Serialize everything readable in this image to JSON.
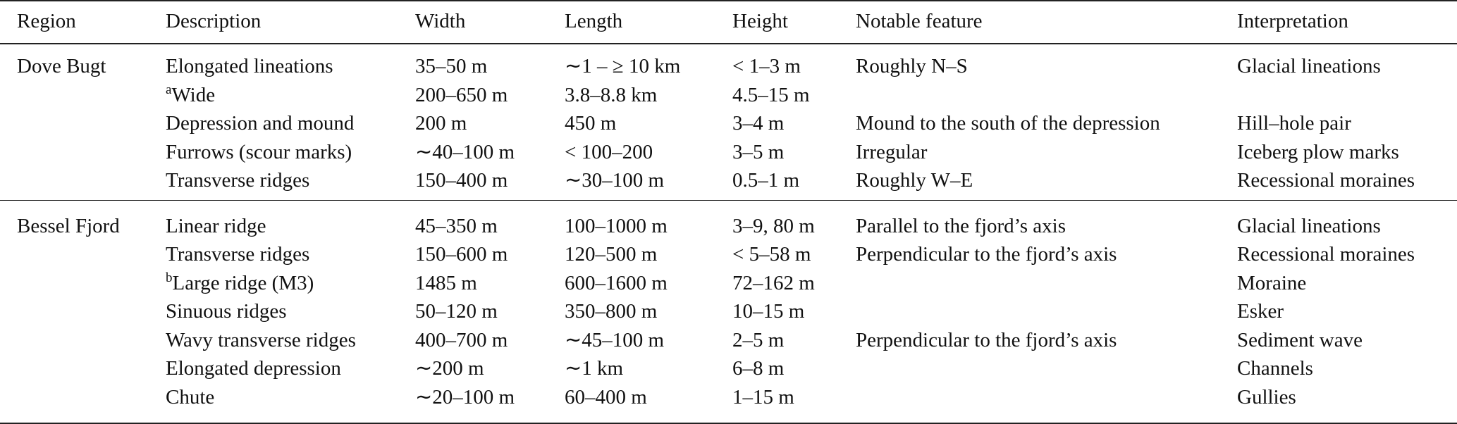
{
  "table": {
    "columns": [
      "Region",
      "Description",
      "Width",
      "Length",
      "Height",
      "Notable feature",
      "Interpretation"
    ],
    "groups": [
      {
        "region": "Dove Bugt",
        "rows": [
          [
            "Elongated lineations",
            "35–50 m",
            "∼1 – ≥ 10 km",
            "< 1–3 m",
            "Roughly N–S",
            "Glacial lineations"
          ],
          [
            {
              "mark": "a",
              "text": "Wide"
            },
            "200–650 m",
            "3.8–8.8 km",
            "4.5–15 m",
            null,
            null
          ],
          [
            "Depression and mound",
            "200 m",
            "450 m",
            "3–4 m",
            "Mound to the south of the depression",
            "Hill–hole pair"
          ],
          [
            "Furrows (scour marks)",
            "∼40–100 m",
            "< 100–200",
            "3–5 m",
            "Irregular",
            "Iceberg plow marks"
          ],
          [
            "Transverse ridges",
            "150–400 m",
            "∼30–100 m",
            "0.5–1 m",
            "Roughly W–E",
            "Recessional moraines"
          ]
        ]
      },
      {
        "region": "Bessel Fjord",
        "rows": [
          [
            "Linear ridge",
            "45–350 m",
            "100–1000 m",
            "3–9, 80 m",
            "Parallel to the fjord’s axis",
            "Glacial lineations"
          ],
          [
            "Transverse ridges",
            "150–600 m",
            "120–500 m",
            "< 5–58 m",
            "Perpendicular to the fjord’s axis",
            "Recessional moraines"
          ],
          [
            {
              "mark": "b",
              "text": "Large ridge (M3)"
            },
            "1485 m",
            "600–1600 m",
            "72–162 m",
            null,
            "Moraine"
          ],
          [
            "Sinuous ridges",
            "50–120 m",
            "350–800 m",
            "10–15 m",
            null,
            "Esker"
          ],
          [
            "Wavy transverse ridges",
            "400–700 m",
            "∼45–100 m",
            "2–5 m",
            "Perpendicular to the fjord’s axis",
            "Sediment wave"
          ],
          [
            "Elongated depression",
            "∼200 m",
            "∼1 km",
            "6–8 m",
            null,
            "Channels"
          ],
          [
            "Chute",
            "∼20–100 m",
            "60–400 m",
            "1–15 m",
            null,
            "Gullies"
          ]
        ]
      }
    ]
  }
}
